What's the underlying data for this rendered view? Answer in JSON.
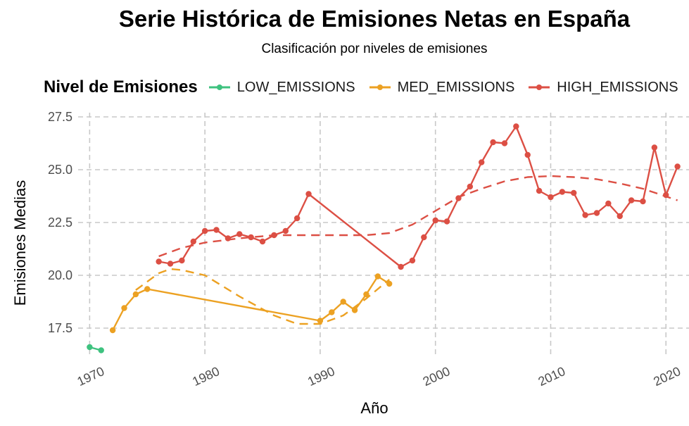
{
  "chart_data": {
    "type": "line",
    "title": "Serie Histórica de Emisiones Netas en España",
    "subtitle": "Clasificación por niveles de emisiones",
    "xlabel": "Año",
    "ylabel": "Emisiones Medias",
    "xlim": [
      1969,
      2022
    ],
    "ylim": [
      16.1,
      27.7
    ],
    "x_ticks": [
      "1970",
      "1980",
      "1990",
      "2000",
      "2010",
      "2020"
    ],
    "y_ticks": [
      "17.5",
      "20.0",
      "22.5",
      "25.0",
      "27.5"
    ],
    "grid": "major, dashed",
    "legend_title": "Nivel de Emisiones",
    "legend_position": "top",
    "series": [
      {
        "name": "LOW_EMISSIONS",
        "color": "#3ec27f",
        "points": [
          [
            1970,
            16.6
          ],
          [
            1971,
            16.45
          ]
        ],
        "trend": []
      },
      {
        "name": "MED_EMISSIONS",
        "color": "#eca122",
        "points": [
          [
            1972,
            17.4
          ],
          [
            1973,
            18.45
          ],
          [
            1974,
            19.1
          ],
          [
            1975,
            19.35
          ],
          [
            1990,
            17.85
          ],
          [
            1991,
            18.25
          ],
          [
            1992,
            18.75
          ],
          [
            1993,
            18.35
          ],
          [
            1994,
            19.1
          ],
          [
            1995,
            19.95
          ],
          [
            1996,
            19.6
          ]
        ],
        "trend": [
          [
            1974,
            19.3
          ],
          [
            1976,
            20.1
          ],
          [
            1977,
            20.3
          ],
          [
            1978,
            20.25
          ],
          [
            1980,
            20.0
          ],
          [
            1983,
            19.0
          ],
          [
            1986,
            18.1
          ],
          [
            1988,
            17.7
          ],
          [
            1990,
            17.7
          ],
          [
            1992,
            18.1
          ],
          [
            1994,
            18.9
          ],
          [
            1996,
            19.8
          ]
        ]
      },
      {
        "name": "HIGH_EMISSIONS",
        "color": "#dc4f44",
        "points": [
          [
            1976,
            20.65
          ],
          [
            1977,
            20.55
          ],
          [
            1978,
            20.7
          ],
          [
            1979,
            21.6
          ],
          [
            1980,
            22.1
          ],
          [
            1981,
            22.15
          ],
          [
            1982,
            21.75
          ],
          [
            1983,
            21.95
          ],
          [
            1984,
            21.8
          ],
          [
            1985,
            21.6
          ],
          [
            1986,
            21.9
          ],
          [
            1987,
            22.1
          ],
          [
            1988,
            22.7
          ],
          [
            1989,
            23.85
          ],
          [
            1997,
            20.4
          ],
          [
            1998,
            20.7
          ],
          [
            1999,
            21.8
          ],
          [
            2000,
            22.6
          ],
          [
            2001,
            22.55
          ],
          [
            2002,
            23.65
          ],
          [
            2003,
            24.2
          ],
          [
            2004,
            25.35
          ],
          [
            2005,
            26.3
          ],
          [
            2006,
            26.25
          ],
          [
            2007,
            27.05
          ],
          [
            2008,
            25.7
          ],
          [
            2009,
            24.0
          ],
          [
            2010,
            23.7
          ],
          [
            2011,
            23.95
          ],
          [
            2012,
            23.9
          ],
          [
            2013,
            22.85
          ],
          [
            2014,
            22.95
          ],
          [
            2015,
            23.4
          ],
          [
            2016,
            22.8
          ],
          [
            2017,
            23.55
          ],
          [
            2018,
            23.5
          ],
          [
            2019,
            26.05
          ],
          [
            2020,
            23.8
          ],
          [
            2021,
            25.15
          ]
        ],
        "trend": [
          [
            1976,
            20.9
          ],
          [
            1978,
            21.3
          ],
          [
            1980,
            21.55
          ],
          [
            1983,
            21.75
          ],
          [
            1986,
            21.9
          ],
          [
            1990,
            21.9
          ],
          [
            1994,
            21.9
          ],
          [
            1996,
            22.0
          ],
          [
            1998,
            22.4
          ],
          [
            2000,
            23.05
          ],
          [
            2002,
            23.7
          ],
          [
            2004,
            24.1
          ],
          [
            2006,
            24.45
          ],
          [
            2008,
            24.65
          ],
          [
            2010,
            24.7
          ],
          [
            2012,
            24.65
          ],
          [
            2014,
            24.55
          ],
          [
            2016,
            24.35
          ],
          [
            2018,
            24.1
          ],
          [
            2021,
            23.55
          ]
        ]
      }
    ]
  }
}
